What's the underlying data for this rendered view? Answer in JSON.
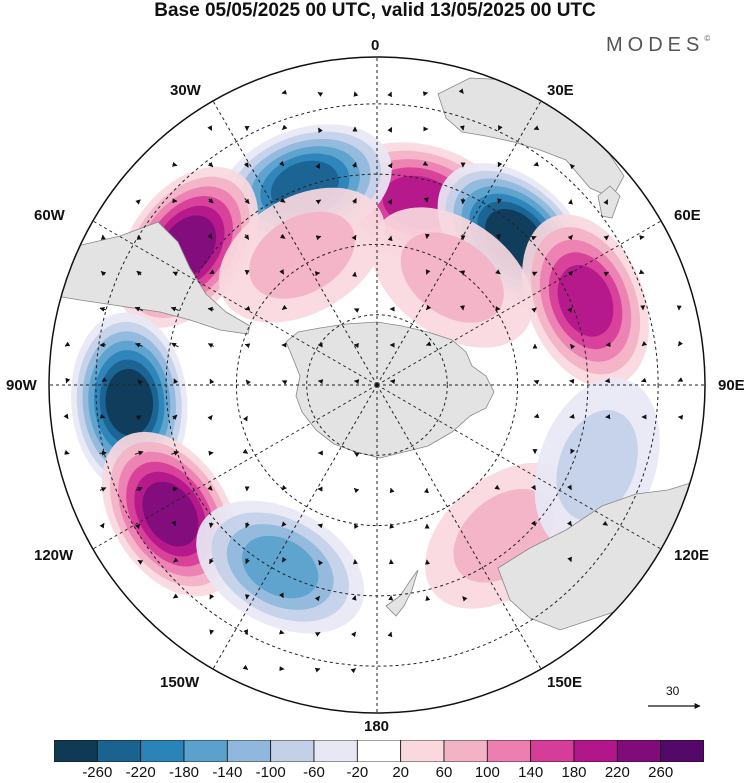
{
  "title": "Base 05/05/2025 00 UTC, valid 13/05/2025 00 UTC",
  "brand": "MODES",
  "brand_mark": "©",
  "longitude_labels": {
    "lon_0": "0",
    "lon_30e": "30E",
    "lon_60e": "60E",
    "lon_90e": "90E",
    "lon_120e": "120E",
    "lon_150e": "150E",
    "lon_180": "180",
    "lon_150w": "150W",
    "lon_120w": "120W",
    "lon_90w": "90W",
    "lon_60w": "60W",
    "lon_30w": "30W"
  },
  "reference_vector_label": "30",
  "colorbar": {
    "ticks": [
      "-260",
      "-220",
      "-180",
      "-140",
      "-100",
      "-60",
      "-20",
      "20",
      "60",
      "100",
      "140",
      "180",
      "220",
      "260"
    ],
    "colors": [
      "#0f3a56",
      "#1a628f",
      "#2a83b9",
      "#5aa1cd",
      "#8fb8dc",
      "#c3d0e8",
      "#e7e8f4",
      "#ffffff",
      "#f9d8de",
      "#f3b2c6",
      "#ec7fb0",
      "#d63d98",
      "#b3168a",
      "#800c7c",
      "#54086a"
    ]
  },
  "projection": "south-polar-stereographic",
  "anomaly_centers": [
    {
      "lon": 13,
      "lat": -50,
      "value": 190
    },
    {
      "lon": 43,
      "lat": -47,
      "value": -250
    },
    {
      "lon": 68,
      "lat": -42,
      "value": 170
    },
    {
      "lon": -20,
      "lat": -45,
      "value": -210
    },
    {
      "lon": -54,
      "lat": -40,
      "value": 220
    },
    {
      "lon": -94,
      "lat": -37,
      "value": -260
    },
    {
      "lon": -122,
      "lat": -38,
      "value": 230
    },
    {
      "lon": -152,
      "lat": -46,
      "value": -150
    },
    {
      "lon": -30,
      "lat": -58,
      "value": 80
    },
    {
      "lon": 35,
      "lat": -62,
      "value": 70
    },
    {
      "lon": 140,
      "lat": -48,
      "value": 60
    },
    {
      "lon": 110,
      "lat": -40,
      "value": -60
    }
  ]
}
